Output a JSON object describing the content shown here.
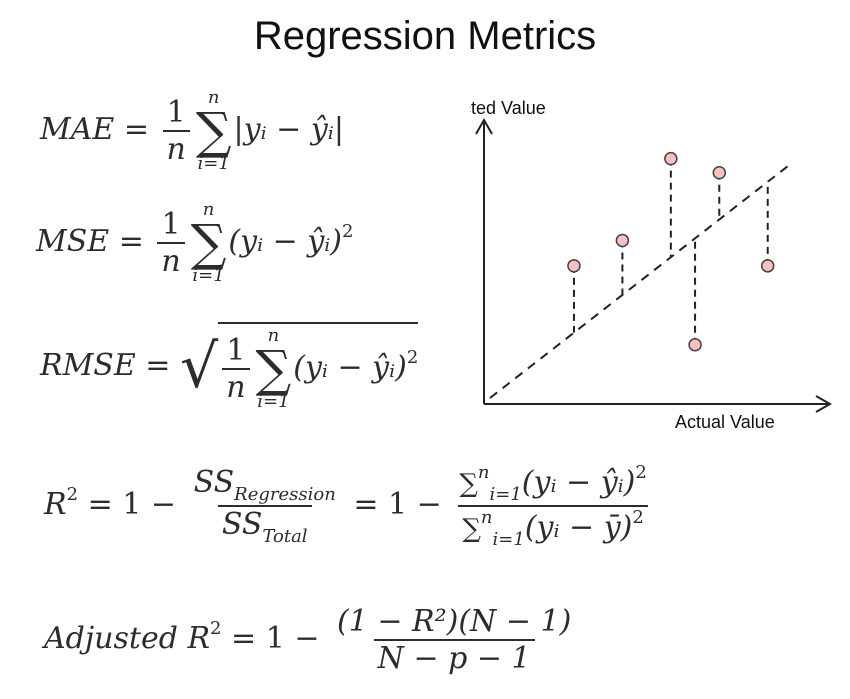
{
  "title": "Regression Metrics",
  "formulas": {
    "mae_lhs": "MAE =",
    "mse_lhs": "MSE =",
    "rmse_lhs": "RMSE =",
    "one": "1",
    "n": "n",
    "n_upper": "n",
    "i_eq_1": "i=1",
    "sum_sign": "∑",
    "abs_residual": "|yᵢ − ŷᵢ|",
    "sq_residual": "(yᵢ − ŷᵢ)",
    "two": "2",
    "r2_lhs": "R",
    "r2_eq_one_minus": "= 1 −",
    "ss_regression": "SS",
    "ss_regression_sub": "Regression",
    "ss_total": "SS",
    "ss_total_sub": "Total",
    "eq_one_minus_2": "= 1 −",
    "r2_num_body": "(yᵢ − ŷᵢ)",
    "r2_den_body": "(yᵢ − ȳ)",
    "adj_lhs": "Adjusted R",
    "adj_num": "(1 − R²)(N − 1)",
    "adj_den": "N − p − 1"
  },
  "diagram": {
    "y_axis_label": "Predicted Value",
    "x_axis_label": "Actual Value",
    "point_color": "#f6c1c1",
    "point_stroke": "#444444",
    "points": [
      {
        "actual": 0.26,
        "predicted": 0.49
      },
      {
        "actual": 0.4,
        "predicted": 0.58
      },
      {
        "actual": 0.54,
        "predicted": 0.87
      },
      {
        "actual": 0.61,
        "predicted": 0.21
      },
      {
        "actual": 0.68,
        "predicted": 0.82
      },
      {
        "actual": 0.82,
        "predicted": 0.49
      }
    ]
  }
}
